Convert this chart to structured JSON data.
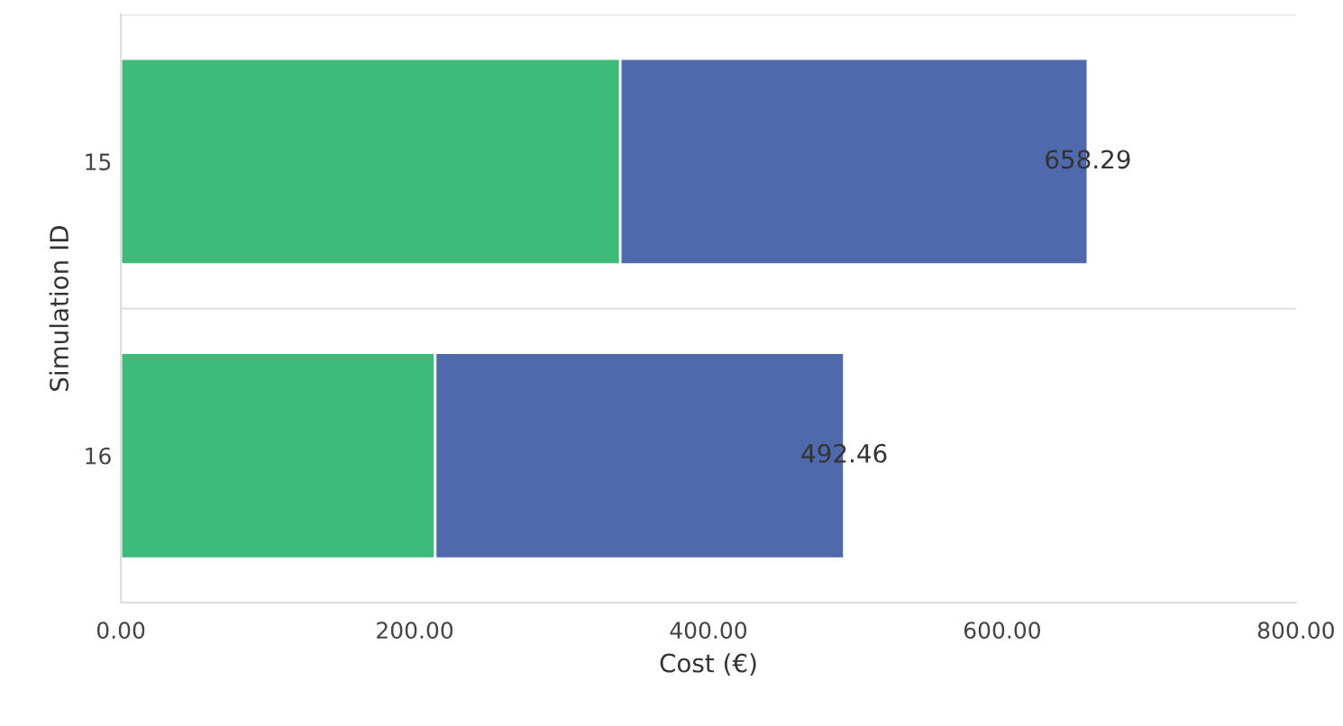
{
  "chart_data": {
    "type": "bar",
    "orientation": "horizontal",
    "stacked": true,
    "categories": [
      "15",
      "16"
    ],
    "series": [
      {
        "color": "#3dbb78",
        "values": [
          340,
          214
        ]
      },
      {
        "color": "#5069ad",
        "values": [
          318.29,
          278.46
        ]
      }
    ],
    "totals": [
      "658.29",
      "492.46"
    ],
    "xlim": [
      0,
      800
    ],
    "xticks": [
      {
        "value": 0,
        "label": "0.00"
      },
      {
        "value": 200,
        "label": "200.00"
      },
      {
        "value": 400,
        "label": "400.00"
      },
      {
        "value": 600,
        "label": "600.00"
      },
      {
        "value": 800,
        "label": "800.00"
      }
    ],
    "xlabel": "Cost (€)",
    "ylabel": "Simulation ID",
    "grid": "y",
    "legend": false
  }
}
